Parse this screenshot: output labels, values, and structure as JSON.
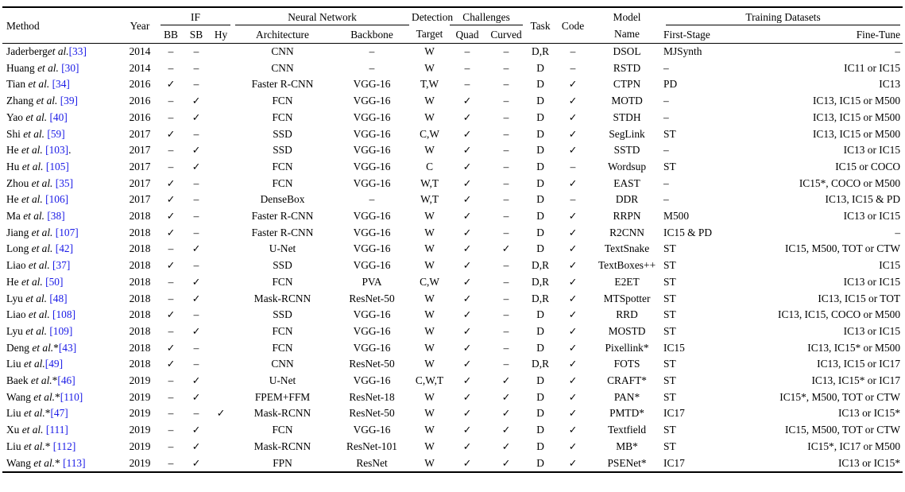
{
  "table": {
    "headers": {
      "method": "Method",
      "year": "Year",
      "if_group": "IF",
      "bb": "BB",
      "sb": "SB",
      "hy": "Hy",
      "nn_group": "Neural Network",
      "architecture": "Architecture",
      "backbone": "Backbone",
      "detection_line1": "Detection",
      "detection_line2": "Target",
      "challenges_group": "Challenges",
      "quad": "Quad",
      "curved": "Curved",
      "task": "Task",
      "code": "Code",
      "model_line1": "Model",
      "model_line2": "Name",
      "training_group": "Training Datasets",
      "first_stage": "First-Stage",
      "fine_tune": "Fine-Tune"
    },
    "symbols": {
      "check": "✓",
      "dash": "–"
    },
    "colors": {
      "citation": "#1a1ae6",
      "text": "#000000",
      "background": "#ffffff",
      "rule": "#000000"
    },
    "rows": [
      {
        "method": {
          "pre": "Jaderberg",
          "etal": "et al.",
          "post": ""
        },
        "cite": "[33]",
        "cite_post": "",
        "year": "2014",
        "bb": "–",
        "sb": "–",
        "hy": "",
        "architecture": "CNN",
        "backbone": "–",
        "target": "W",
        "quad": "–",
        "curved": "–",
        "task": "D,R",
        "code": "–",
        "model": "DSOL",
        "first_stage": "MJSynth",
        "fine_tune": "–"
      },
      {
        "method": {
          "pre": "Huang ",
          "etal": "et al.",
          "post": " "
        },
        "cite": "[30]",
        "cite_post": "",
        "year": "2014",
        "bb": "–",
        "sb": "–",
        "hy": "",
        "architecture": "CNN",
        "backbone": "–",
        "target": "W",
        "quad": "–",
        "curved": "–",
        "task": "D",
        "code": "–",
        "model": "RSTD",
        "first_stage": "–",
        "fine_tune": "IC11 or IC15"
      },
      {
        "method": {
          "pre": "Tian ",
          "etal": "et al.",
          "post": " "
        },
        "cite": "[34]",
        "cite_post": "",
        "year": "2016",
        "bb": "✓",
        "sb": "–",
        "hy": "",
        "architecture": "Faster R-CNN",
        "backbone": "VGG-16",
        "target": "T,W",
        "quad": "–",
        "curved": "–",
        "task": "D",
        "code": "✓",
        "model": "CTPN",
        "first_stage": "PD",
        "fine_tune": "IC13"
      },
      {
        "method": {
          "pre": "Zhang ",
          "etal": "et al.",
          "post": " "
        },
        "cite": "[39]",
        "cite_post": "",
        "year": "2016",
        "bb": "–",
        "sb": "✓",
        "hy": "",
        "architecture": "FCN",
        "backbone": "VGG-16",
        "target": "W",
        "quad": "✓",
        "curved": "–",
        "task": "D",
        "code": "✓",
        "model": "MOTD",
        "first_stage": "–",
        "fine_tune": "IC13, IC15 or M500"
      },
      {
        "method": {
          "pre": "Yao ",
          "etal": "et al.",
          "post": " "
        },
        "cite": "[40]",
        "cite_post": "",
        "year": "2016",
        "bb": "–",
        "sb": "✓",
        "hy": "",
        "architecture": "FCN",
        "backbone": "VGG-16",
        "target": "W",
        "quad": "✓",
        "curved": "–",
        "task": "D",
        "code": "✓",
        "model": "STDH",
        "first_stage": "–",
        "fine_tune": "IC13, IC15 or M500"
      },
      {
        "method": {
          "pre": "Shi ",
          "etal": "et al.",
          "post": " "
        },
        "cite": "[59]",
        "cite_post": "",
        "year": "2017",
        "bb": "✓",
        "sb": "–",
        "hy": "",
        "architecture": "SSD",
        "backbone": "VGG-16",
        "target": "C,W",
        "quad": "✓",
        "curved": "–",
        "task": "D",
        "code": "✓",
        "model": "SegLink",
        "first_stage": "ST",
        "fine_tune": "IC13, IC15 or M500"
      },
      {
        "method": {
          "pre": "He ",
          "etal": "et al.",
          "post": " "
        },
        "cite": "[103]",
        "cite_post": ".",
        "year": "2017",
        "bb": "–",
        "sb": "✓",
        "hy": "",
        "architecture": "SSD",
        "backbone": "VGG-16",
        "target": "W",
        "quad": "✓",
        "curved": "–",
        "task": "D",
        "code": "✓",
        "model": "SSTD",
        "first_stage": "–",
        "fine_tune": "IC13 or IC15"
      },
      {
        "method": {
          "pre": "Hu ",
          "etal": "et al.",
          "post": " "
        },
        "cite": "[105]",
        "cite_post": "",
        "year": "2017",
        "bb": "–",
        "sb": "✓",
        "hy": "",
        "architecture": "FCN",
        "backbone": "VGG-16",
        "target": "C",
        "quad": "✓",
        "curved": "–",
        "task": "D",
        "code": "–",
        "model": "Wordsup",
        "first_stage": "ST",
        "fine_tune": "IC15 or COCO"
      },
      {
        "method": {
          "pre": "Zhou ",
          "etal": "et al.",
          "post": " "
        },
        "cite": "[35]",
        "cite_post": "",
        "year": "2017",
        "bb": "✓",
        "sb": "–",
        "hy": "",
        "architecture": "FCN",
        "backbone": "VGG-16",
        "target": "W,T",
        "quad": "✓",
        "curved": "–",
        "task": "D",
        "code": "✓",
        "model": "EAST",
        "first_stage": "–",
        "fine_tune": "IC15*, COCO or M500"
      },
      {
        "method": {
          "pre": "He ",
          "etal": "et al.",
          "post": " "
        },
        "cite": "[106]",
        "cite_post": "",
        "year": "2017",
        "bb": "✓",
        "sb": "–",
        "hy": "",
        "architecture": "DenseBox",
        "backbone": "–",
        "target": "W,T",
        "quad": "✓",
        "curved": "–",
        "task": "D",
        "code": "–",
        "model": "DDR",
        "first_stage": "–",
        "fine_tune": "IC13, IC15 & PD"
      },
      {
        "method": {
          "pre": "Ma ",
          "etal": "et al.",
          "post": " "
        },
        "cite": "[38]",
        "cite_post": "",
        "year": "2018",
        "bb": "✓",
        "sb": "–",
        "hy": "",
        "architecture": "Faster R-CNN",
        "backbone": "VGG-16",
        "target": "W",
        "quad": "✓",
        "curved": "–",
        "task": "D",
        "code": "✓",
        "model": "RRPN",
        "first_stage": "M500",
        "fine_tune": "IC13 or IC15"
      },
      {
        "method": {
          "pre": "Jiang ",
          "etal": "et al.",
          "post": " "
        },
        "cite": "[107]",
        "cite_post": "",
        "year": "2018",
        "bb": "✓",
        "sb": "–",
        "hy": "",
        "architecture": "Faster R-CNN",
        "backbone": "VGG-16",
        "target": "W",
        "quad": "✓",
        "curved": "–",
        "task": "D",
        "code": "✓",
        "model": "R2CNN",
        "first_stage": "IC15 & PD",
        "fine_tune": "–"
      },
      {
        "method": {
          "pre": "Long ",
          "etal": "et al.",
          "post": " "
        },
        "cite": "[42]",
        "cite_post": "",
        "year": "2018",
        "bb": "–",
        "sb": "✓",
        "hy": "",
        "architecture": "U-Net",
        "backbone": "VGG-16",
        "target": "W",
        "quad": "✓",
        "curved": "✓",
        "task": "D",
        "code": "✓",
        "model": "TextSnake",
        "first_stage": "ST",
        "fine_tune": "IC15, M500, TOT or CTW"
      },
      {
        "method": {
          "pre": "Liao ",
          "etal": "et al.",
          "post": " "
        },
        "cite": "[37]",
        "cite_post": "",
        "year": "2018",
        "bb": "✓",
        "sb": "–",
        "hy": "",
        "architecture": "SSD",
        "backbone": "VGG-16",
        "target": "W",
        "quad": "✓",
        "curved": "–",
        "task": "D,R",
        "code": "✓",
        "model": "TextBoxes++",
        "first_stage": "ST",
        "fine_tune": "IC15"
      },
      {
        "method": {
          "pre": "He ",
          "etal": "et al.",
          "post": " "
        },
        "cite": "[50]",
        "cite_post": "",
        "year": "2018",
        "bb": "–",
        "sb": "✓",
        "hy": "",
        "architecture": "FCN",
        "backbone": "PVA",
        "target": "C,W",
        "quad": "✓",
        "curved": "–",
        "task": "D,R",
        "code": "✓",
        "model": "E2ET",
        "first_stage": "ST",
        "fine_tune": "IC13 or IC15"
      },
      {
        "method": {
          "pre": "Lyu ",
          "etal": "et al.",
          "post": " "
        },
        "cite": "[48]",
        "cite_post": "",
        "year": "2018",
        "bb": "–",
        "sb": "✓",
        "hy": "",
        "architecture": "Mask-RCNN",
        "backbone": "ResNet-50",
        "target": "W",
        "quad": "✓",
        "curved": "–",
        "task": "D,R",
        "code": "✓",
        "model": "MTSpotter",
        "first_stage": "ST",
        "fine_tune": "IC13, IC15 or TOT"
      },
      {
        "method": {
          "pre": "Liao ",
          "etal": "et al.",
          "post": " "
        },
        "cite": "[108]",
        "cite_post": "",
        "year": "2018",
        "bb": "✓",
        "sb": "–",
        "hy": "",
        "architecture": "SSD",
        "backbone": "VGG-16",
        "target": "W",
        "quad": "✓",
        "curved": "–",
        "task": "D",
        "code": "✓",
        "model": "RRD",
        "first_stage": "ST",
        "fine_tune": "IC13, IC15, COCO or M500"
      },
      {
        "method": {
          "pre": "Lyu ",
          "etal": "et al.",
          "post": " "
        },
        "cite": "[109]",
        "cite_post": "",
        "year": "2018",
        "bb": "–",
        "sb": "✓",
        "hy": "",
        "architecture": "FCN",
        "backbone": "VGG-16",
        "target": "W",
        "quad": "✓",
        "curved": "–",
        "task": "D",
        "code": "✓",
        "model": "MOSTD",
        "first_stage": "ST",
        "fine_tune": "IC13 or IC15"
      },
      {
        "method": {
          "pre": "Deng ",
          "etal": "et al.",
          "post": "*"
        },
        "cite": "[43]",
        "cite_post": "",
        "year": "2018",
        "bb": "✓",
        "sb": "–",
        "hy": "",
        "architecture": "FCN",
        "backbone": "VGG-16",
        "target": "W",
        "quad": "✓",
        "curved": "–",
        "task": "D",
        "code": "✓",
        "model": "Pixellink*",
        "first_stage": "IC15",
        "fine_tune": "IC13, IC15* or M500"
      },
      {
        "method": {
          "pre": "Liu ",
          "etal": "et al.",
          "post": ""
        },
        "cite": "[49]",
        "cite_post": "",
        "year": "2018",
        "bb": "✓",
        "sb": "–",
        "hy": "",
        "architecture": "CNN",
        "backbone": "ResNet-50",
        "target": "W",
        "quad": "✓",
        "curved": "–",
        "task": "D,R",
        "code": "✓",
        "model": "FOTS",
        "first_stage": "ST",
        "fine_tune": "IC13, IC15 or IC17"
      },
      {
        "method": {
          "pre": "Baek ",
          "etal": "et al.",
          "post": "*"
        },
        "cite": "[46]",
        "cite_post": "",
        "year": "2019",
        "bb": "–",
        "sb": "✓",
        "hy": "",
        "architecture": "U-Net",
        "backbone": "VGG-16",
        "target": "C,W,T",
        "quad": "✓",
        "curved": "✓",
        "task": "D",
        "code": "✓",
        "model": "CRAFT*",
        "first_stage": "ST",
        "fine_tune": "IC13, IC15* or IC17"
      },
      {
        "method": {
          "pre": "Wang ",
          "etal": "et al.",
          "post": "*"
        },
        "cite": "[110]",
        "cite_post": "",
        "year": "2019",
        "bb": "–",
        "sb": "✓",
        "hy": "",
        "architecture": "FPEM+FFM",
        "backbone": "ResNet-18",
        "target": "W",
        "quad": "✓",
        "curved": "✓",
        "task": "D",
        "code": "✓",
        "model": "PAN*",
        "first_stage": "ST",
        "fine_tune": "IC15*, M500, TOT or CTW"
      },
      {
        "method": {
          "pre": "Liu ",
          "etal": "et al.",
          "post": "*"
        },
        "cite": "[47]",
        "cite_post": "",
        "year": "2019",
        "bb": "–",
        "sb": "–",
        "hy": "✓",
        "architecture": "Mask-RCNN",
        "backbone": "ResNet-50",
        "target": "W",
        "quad": "✓",
        "curved": "✓",
        "task": "D",
        "code": "✓",
        "model": "PMTD*",
        "first_stage": "IC17",
        "fine_tune": "IC13 or IC15*"
      },
      {
        "method": {
          "pre": "Xu ",
          "etal": "et al.",
          "post": " "
        },
        "cite": "[111]",
        "cite_post": "",
        "year": "2019",
        "bb": "–",
        "sb": "✓",
        "hy": "",
        "architecture": "FCN",
        "backbone": "VGG-16",
        "target": "W",
        "quad": "✓",
        "curved": "✓",
        "task": "D",
        "code": "✓",
        "model": "Textfield",
        "first_stage": "ST",
        "fine_tune": "IC15, M500, TOT or CTW"
      },
      {
        "method": {
          "pre": "Liu ",
          "etal": "et al.",
          "post": "* "
        },
        "cite": "[112]",
        "cite_post": "",
        "year": "2019",
        "bb": "–",
        "sb": "✓",
        "hy": "",
        "architecture": "Mask-RCNN",
        "backbone": "ResNet-101",
        "target": "W",
        "quad": "✓",
        "curved": "✓",
        "task": "D",
        "code": "✓",
        "model": "MB*",
        "first_stage": "ST",
        "fine_tune": "IC15*, IC17 or M500"
      },
      {
        "method": {
          "pre": "Wang ",
          "etal": "et al.",
          "post": "* "
        },
        "cite": "[113]",
        "cite_post": "",
        "year": "2019",
        "bb": "–",
        "sb": "✓",
        "hy": "",
        "architecture": "FPN",
        "backbone": "ResNet",
        "target": "W",
        "quad": "✓",
        "curved": "✓",
        "task": "D",
        "code": "✓",
        "model": "PSENet*",
        "first_stage": "IC17",
        "fine_tune": "IC13 or IC15*"
      }
    ]
  }
}
